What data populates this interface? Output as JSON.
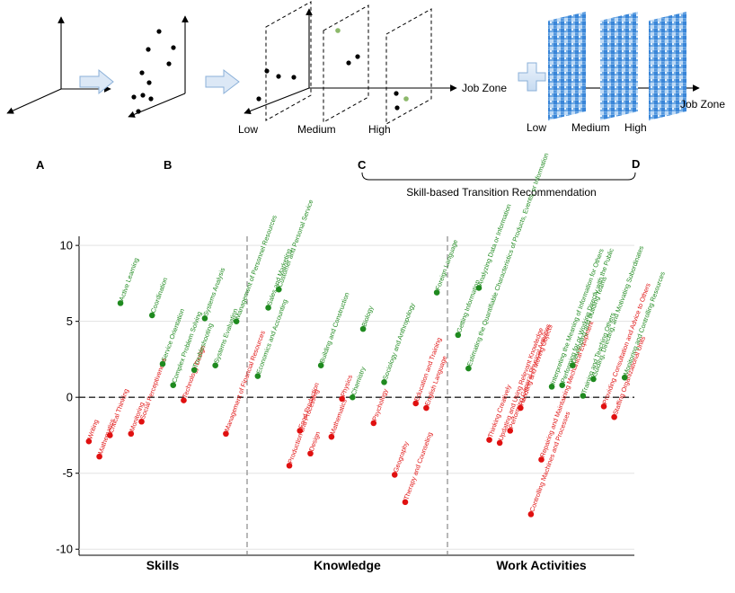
{
  "diagram": {
    "panel_letters": [
      "A",
      "B",
      "C",
      "D"
    ],
    "levels": [
      "Low",
      "Medium",
      "High"
    ],
    "axis_label": "Job Zone",
    "bracket_label": "Skill-based Transition Recommendation"
  },
  "chart_data": {
    "type": "scatter",
    "groups": [
      "Skills",
      "Knowledge",
      "Work Activities"
    ],
    "y_ticks": [
      -10,
      -5,
      0,
      5,
      10
    ],
    "ylim": [
      -10.4,
      10.6
    ],
    "reference_line": 0,
    "colors": {
      "positive": "#1f8a1f",
      "negative": "#e01010"
    },
    "points": [
      {
        "label": "Writing",
        "group": 0,
        "i": 0,
        "y": -2.9
      },
      {
        "label": "Mathematics",
        "group": 0,
        "i": 1,
        "y": -3.9
      },
      {
        "label": "Critical Thinking",
        "group": 0,
        "i": 2,
        "y": -2.5
      },
      {
        "label": "Active Learning",
        "group": 0,
        "i": 3,
        "y": 6.2
      },
      {
        "label": "Monitoring",
        "group": 0,
        "i": 4,
        "y": -2.4
      },
      {
        "label": "Social Perceptiveness",
        "group": 0,
        "i": 5,
        "y": -1.6
      },
      {
        "label": "Coordination",
        "group": 0,
        "i": 6,
        "y": 5.4
      },
      {
        "label": "Service Orientation",
        "group": 0,
        "i": 7,
        "y": 2.2
      },
      {
        "label": "Complex Problem Solving",
        "group": 0,
        "i": 8,
        "y": 0.8
      },
      {
        "label": "Technology Design",
        "group": 0,
        "i": 9,
        "y": -0.2
      },
      {
        "label": "Troubleshooting",
        "group": 0,
        "i": 10,
        "y": 1.8
      },
      {
        "label": "Systems Analysis",
        "group": 0,
        "i": 11,
        "y": 5.2
      },
      {
        "label": "Systems Evaluation",
        "group": 0,
        "i": 12,
        "y": 2.1
      },
      {
        "label": "Management of Financial Resources",
        "group": 0,
        "i": 13,
        "y": -2.4
      },
      {
        "label": "Management of Personnel Resources",
        "group": 0,
        "i": 14,
        "y": 5.0
      },
      {
        "label": "Economics and Accounting",
        "group": 1,
        "i": 0,
        "y": 1.4
      },
      {
        "label": "Sales and Marketing",
        "group": 1,
        "i": 1,
        "y": 5.9
      },
      {
        "label": "Customer and Personal Service",
        "group": 1,
        "i": 2,
        "y": 7.1
      },
      {
        "label": "Production and Processing",
        "group": 1,
        "i": 3,
        "y": -4.5
      },
      {
        "label": "Food Production",
        "group": 1,
        "i": 4,
        "y": -2.2
      },
      {
        "label": "Design",
        "group": 1,
        "i": 5,
        "y": -3.7
      },
      {
        "label": "Building and Construction",
        "group": 1,
        "i": 6,
        "y": 2.1
      },
      {
        "label": "Mathematics",
        "group": 1,
        "i": 7,
        "y": -2.6
      },
      {
        "label": "Physics",
        "group": 1,
        "i": 8,
        "y": -0.1
      },
      {
        "label": "Chemistry",
        "group": 1,
        "i": 9,
        "y": 0.0
      },
      {
        "label": "Biology",
        "group": 1,
        "i": 10,
        "y": 4.5
      },
      {
        "label": "Psychology",
        "group": 1,
        "i": 11,
        "y": -1.7
      },
      {
        "label": "Sociology and Anthropology",
        "group": 1,
        "i": 12,
        "y": 1.0
      },
      {
        "label": "Geography",
        "group": 1,
        "i": 13,
        "y": -5.1
      },
      {
        "label": "Therapy and Counseling",
        "group": 1,
        "i": 14,
        "y": -6.9
      },
      {
        "label": "Education and Training",
        "group": 1,
        "i": 15,
        "y": -0.4
      },
      {
        "label": "English Language",
        "group": 1,
        "i": 16,
        "y": -0.7
      },
      {
        "label": "Foreign Language",
        "group": 1,
        "i": 17,
        "y": 6.9
      },
      {
        "label": "Getting Information",
        "group": 2,
        "i": 0,
        "y": 4.1
      },
      {
        "label": "Estimating the Quantifiable Characteristics of Products, Events, or Information",
        "group": 2,
        "i": 1,
        "y": 1.9
      },
      {
        "label": "Analyzing Data or Information",
        "group": 2,
        "i": 2,
        "y": 7.2
      },
      {
        "label": "Thinking Creatively",
        "group": 2,
        "i": 3,
        "y": -2.8
      },
      {
        "label": "Updating and Using Relevant Knowledge",
        "group": 2,
        "i": 4,
        "y": -3.0
      },
      {
        "label": "Performing General Physical Activities",
        "group": 2,
        "i": 5,
        "y": -2.2
      },
      {
        "label": "Handling and Moving Objects",
        "group": 2,
        "i": 6,
        "y": -0.7
      },
      {
        "label": "Controlling Machines and Processes",
        "group": 2,
        "i": 7,
        "y": -7.7
      },
      {
        "label": "Repairing and Maintaining Mechanical Equipment",
        "group": 2,
        "i": 8,
        "y": -4.1
      },
      {
        "label": "Interpreting the Meaning of Information for Others",
        "group": 2,
        "i": 9,
        "y": 0.7
      },
      {
        "label": "Performing for or Working Directly with the Public",
        "group": 2,
        "i": 10,
        "y": 0.8
      },
      {
        "label": "Developing and Building Teams",
        "group": 2,
        "i": 11,
        "y": 2.1
      },
      {
        "label": "Training and Teaching Others",
        "group": 2,
        "i": 12,
        "y": 0.1
      },
      {
        "label": "Guiding, Directing, and Motivating Subordinates",
        "group": 2,
        "i": 13,
        "y": 1.2
      },
      {
        "label": "Providing Consultation and Advice to Others",
        "group": 2,
        "i": 14,
        "y": -0.6
      },
      {
        "label": "Staffing Organizational Units",
        "group": 2,
        "i": 15,
        "y": -1.3
      },
      {
        "label": "Monitoring and Controlling Resources",
        "group": 2,
        "i": 16,
        "y": 1.3
      }
    ]
  }
}
